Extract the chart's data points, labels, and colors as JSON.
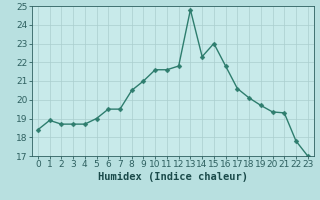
{
  "x": [
    0,
    1,
    2,
    3,
    4,
    5,
    6,
    7,
    8,
    9,
    10,
    11,
    12,
    13,
    14,
    15,
    16,
    17,
    18,
    19,
    20,
    21,
    22,
    23
  ],
  "y": [
    18.4,
    18.9,
    18.7,
    18.7,
    18.7,
    19.0,
    19.5,
    19.5,
    20.5,
    21.0,
    21.6,
    21.6,
    21.8,
    24.8,
    22.3,
    23.0,
    21.8,
    20.6,
    20.1,
    19.7,
    19.35,
    19.3,
    17.8,
    17.0
  ],
  "line_color": "#2e7d6e",
  "marker": "D",
  "marker_size": 2.5,
  "background_color": "#b8e0e0",
  "grid_color": "#c8d8d8",
  "plot_bg_color": "#c8eaea",
  "xlabel": "Humidex (Indice chaleur)",
  "xlim": [
    -0.5,
    23.5
  ],
  "ylim": [
    17,
    25
  ],
  "yticks": [
    17,
    18,
    19,
    20,
    21,
    22,
    23,
    24,
    25
  ],
  "xticks": [
    0,
    1,
    2,
    3,
    4,
    5,
    6,
    7,
    8,
    9,
    10,
    11,
    12,
    13,
    14,
    15,
    16,
    17,
    18,
    19,
    20,
    21,
    22,
    23
  ],
  "tick_color": "#2e6060",
  "label_color": "#1a4a4a",
  "font_size_label": 7.5,
  "font_size_tick": 6.5,
  "line_width": 1.0
}
